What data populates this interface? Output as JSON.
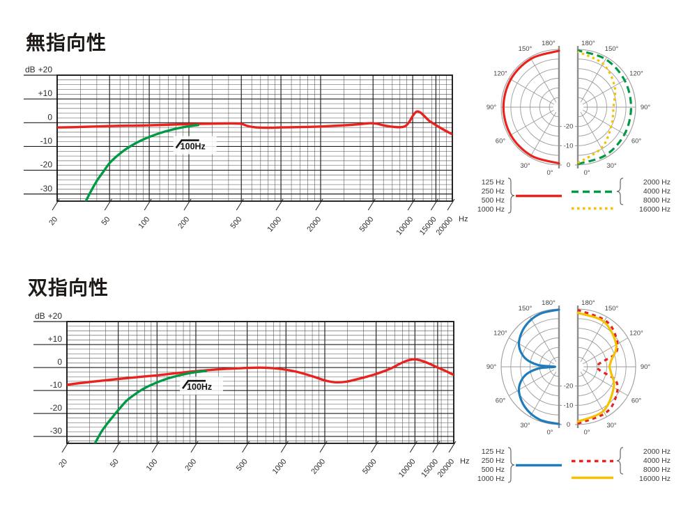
{
  "sections": [
    {
      "title": "無指向性"
    },
    {
      "title": "双指向性"
    }
  ],
  "chart_data": [
    {
      "id": "freq-omni",
      "type": "line",
      "title": "無指向性",
      "xlabel": "Hz",
      "ylabel": "dB",
      "x_scale": "log",
      "xlim": [
        20,
        20000
      ],
      "ylim": [
        -33,
        20
      ],
      "grid": true,
      "x_ticks": [
        {
          "v": 20,
          "label": "20"
        },
        {
          "v": 50,
          "label": "50"
        },
        {
          "v": 100,
          "label": "100"
        },
        {
          "v": 200,
          "label": "200"
        },
        {
          "v": 500,
          "label": "500"
        },
        {
          "v": 1000,
          "label": "1000"
        },
        {
          "v": 2000,
          "label": "2000"
        },
        {
          "v": 5000,
          "label": "5000"
        },
        {
          "v": 10000,
          "label": "10000"
        },
        {
          "v": 15000,
          "label": "15000"
        },
        {
          "v": 20000,
          "label": "20000"
        }
      ],
      "y_ticks": [
        {
          "v": 20,
          "label": "+20"
        },
        {
          "v": 10,
          "label": "+10"
        },
        {
          "v": 0,
          "label": "0"
        },
        {
          "v": -10,
          "label": "-10"
        },
        {
          "v": -20,
          "label": "-20"
        },
        {
          "v": -30,
          "label": "-30"
        }
      ],
      "annotation": {
        "text": "100Hz",
        "f": 160,
        "db": -7.4
      },
      "series": [
        {
          "name": "frequency-response",
          "color": "#e8231e",
          "style": "solid",
          "points": [
            [
              20,
              -2
            ],
            [
              30,
              -1.8
            ],
            [
              50,
              -1.4
            ],
            [
              80,
              -1.2
            ],
            [
              100,
              -1.1
            ],
            [
              150,
              -0.8
            ],
            [
              200,
              -0.6
            ],
            [
              300,
              -0.4
            ],
            [
              420,
              -0.3
            ],
            [
              500,
              -0.5
            ],
            [
              560,
              -1.4
            ],
            [
              650,
              -2
            ],
            [
              800,
              -2.1
            ],
            [
              1000,
              -2
            ],
            [
              1500,
              -1.8
            ],
            [
              2000,
              -1.6
            ],
            [
              3000,
              -1.1
            ],
            [
              4000,
              -0.6
            ],
            [
              4800,
              -0.2
            ],
            [
              5400,
              -0.5
            ],
            [
              6000,
              -1.1
            ],
            [
              7000,
              -1.7
            ],
            [
              8000,
              -1.9
            ],
            [
              8800,
              -1.4
            ],
            [
              9400,
              0.3
            ],
            [
              10000,
              2.8
            ],
            [
              10700,
              4.7
            ],
            [
              11500,
              4.2
            ],
            [
              12500,
              2.3
            ],
            [
              13500,
              0.6
            ],
            [
              15000,
              -1
            ],
            [
              17000,
              -2.8
            ],
            [
              20000,
              -4.9
            ]
          ]
        },
        {
          "name": "low-cut-100Hz",
          "color": "#009a44",
          "style": "solid",
          "points": [
            [
              33,
              -33
            ],
            [
              36,
              -29
            ],
            [
              40,
              -24.5
            ],
            [
              45,
              -20.5
            ],
            [
              50,
              -17
            ],
            [
              57,
              -14
            ],
            [
              65,
              -11.5
            ],
            [
              75,
              -9.3
            ],
            [
              85,
              -7.7
            ],
            [
              100,
              -6
            ],
            [
              120,
              -4.4
            ],
            [
              140,
              -3.3
            ],
            [
              170,
              -2.2
            ],
            [
              200,
              -1.5
            ],
            [
              235,
              -1
            ]
          ]
        }
      ]
    },
    {
      "id": "polar-omni",
      "type": "polar",
      "title": "無指向性 polar pattern",
      "rings_db": [
        0,
        -5,
        -10,
        -15,
        -20,
        -25
      ],
      "radial_axis_labels": [
        {
          "db": -20,
          "label": "-20"
        },
        {
          "db": -10,
          "label": "-10"
        },
        {
          "db": 0,
          "label": "0"
        }
      ],
      "angle_labels": [
        "0°",
        "30°",
        "60°",
        "90°",
        "120°",
        "150°",
        "180°"
      ],
      "halves": {
        "left": [
          {
            "name": "125-1000 Hz",
            "color": "#e8231e",
            "style": "solid",
            "points": [
              [
                0,
                -0.8
              ],
              [
                30,
                -1
              ],
              [
                60,
                -1.1
              ],
              [
                90,
                -1.2
              ],
              [
                120,
                -1.1
              ],
              [
                150,
                -1
              ],
              [
                180,
                -0.7
              ]
            ]
          }
        ],
        "right": [
          {
            "name": "2000-8000 Hz",
            "color": "#009a44",
            "style": "dashed",
            "points": [
              [
                0,
                -0.5
              ],
              [
                30,
                -1.2
              ],
              [
                60,
                -2
              ],
              [
                90,
                -2.4
              ],
              [
                120,
                -2
              ],
              [
                150,
                -1.2
              ],
              [
                180,
                -0.5
              ]
            ]
          },
          {
            "name": "16000 Hz",
            "color": "#f6c100",
            "style": "dotted",
            "points": [
              [
                0,
                -1
              ],
              [
                30,
                -5.5
              ],
              [
                60,
                -10
              ],
              [
                90,
                -11.5
              ],
              [
                120,
                -8
              ],
              [
                150,
                -4
              ],
              [
                180,
                -1.2
              ]
            ]
          }
        ]
      },
      "legend": {
        "low": {
          "labels": [
            "125 Hz",
            "250 Hz",
            "500 Hz",
            "1000 Hz"
          ],
          "color": "#e8231e",
          "style": "solid"
        },
        "high": [
          {
            "labels": [
              "2000 Hz",
              "4000 Hz",
              "8000 Hz"
            ],
            "color": "#009a44",
            "style": "dashed"
          },
          {
            "labels": [
              "16000 Hz"
            ],
            "color": "#f6c100",
            "style": "dotted"
          }
        ]
      }
    },
    {
      "id": "freq-bidirectional",
      "type": "line",
      "title": "双指向性",
      "xlabel": "Hz",
      "ylabel": "dB",
      "x_scale": "log",
      "xlim": [
        20,
        20000
      ],
      "ylim": [
        -33,
        20
      ],
      "grid": true,
      "x_ticks": [
        {
          "v": 20,
          "label": "20"
        },
        {
          "v": 50,
          "label": "50"
        },
        {
          "v": 100,
          "label": "100"
        },
        {
          "v": 200,
          "label": "200"
        },
        {
          "v": 500,
          "label": "500"
        },
        {
          "v": 1000,
          "label": "1000"
        },
        {
          "v": 2000,
          "label": "2000"
        },
        {
          "v": 5000,
          "label": "5000"
        },
        {
          "v": 10000,
          "label": "10000"
        },
        {
          "v": 15000,
          "label": "15000"
        },
        {
          "v": 20000,
          "label": "20000"
        }
      ],
      "y_ticks": [
        {
          "v": 20,
          "label": "+20"
        },
        {
          "v": 10,
          "label": "+10"
        },
        {
          "v": 0,
          "label": "0"
        },
        {
          "v": -10,
          "label": "-10"
        },
        {
          "v": -20,
          "label": "-20"
        },
        {
          "v": -30,
          "label": "-30"
        }
      ],
      "annotation": {
        "text": "100Hz",
        "f": 158,
        "db": -5.8
      },
      "series": [
        {
          "name": "frequency-response",
          "color": "#e8231e",
          "style": "solid",
          "points": [
            [
              20,
              -7.5
            ],
            [
              30,
              -6.3
            ],
            [
              50,
              -5
            ],
            [
              70,
              -4.2
            ],
            [
              100,
              -3.4
            ],
            [
              150,
              -2.3
            ],
            [
              200,
              -1.6
            ],
            [
              300,
              -0.8
            ],
            [
              400,
              -0.4
            ],
            [
              550,
              -0.1
            ],
            [
              700,
              -0.1
            ],
            [
              900,
              -0.6
            ],
            [
              1200,
              -1.8
            ],
            [
              1600,
              -3.8
            ],
            [
              2000,
              -5.6
            ],
            [
              2400,
              -6.4
            ],
            [
              2900,
              -6.2
            ],
            [
              3500,
              -5.2
            ],
            [
              4500,
              -3.6
            ],
            [
              5500,
              -2
            ],
            [
              6500,
              -0.4
            ],
            [
              7500,
              1.4
            ],
            [
              8500,
              2.8
            ],
            [
              9500,
              3.5
            ],
            [
              10500,
              3.4
            ],
            [
              12000,
              2.4
            ],
            [
              13500,
              1.2
            ],
            [
              15000,
              0
            ],
            [
              17000,
              -1.3
            ],
            [
              20000,
              -3.2
            ]
          ]
        },
        {
          "name": "low-cut-100Hz",
          "color": "#009a44",
          "style": "solid",
          "points": [
            [
              33,
              -33
            ],
            [
              37,
              -28
            ],
            [
              41,
              -24.5
            ],
            [
              46,
              -21
            ],
            [
              51,
              -18
            ],
            [
              58,
              -14.5
            ],
            [
              68,
              -11.5
            ],
            [
              80,
              -9
            ],
            [
              95,
              -7
            ],
            [
              115,
              -5.2
            ],
            [
              140,
              -3.8
            ],
            [
              170,
              -2.7
            ],
            [
              200,
              -2
            ],
            [
              240,
              -1.5
            ]
          ]
        }
      ]
    },
    {
      "id": "polar-bidirectional",
      "type": "polar",
      "title": "双指向性 polar pattern",
      "rings_db": [
        0,
        -5,
        -10,
        -15,
        -20,
        -25
      ],
      "radial_axis_labels": [
        {
          "db": -20,
          "label": "-20"
        },
        {
          "db": -10,
          "label": "-10"
        },
        {
          "db": 0,
          "label": "0"
        }
      ],
      "angle_labels": [
        "0°",
        "30°",
        "60°",
        "90°",
        "120°",
        "150°",
        "180°"
      ],
      "halves": {
        "left": [
          {
            "name": "125-1000 Hz",
            "color": "#1e7bbd",
            "style": "solid",
            "points": [
              [
                0,
                -0.3
              ],
              [
                20,
                -0.8
              ],
              [
                40,
                -2.6
              ],
              [
                60,
                -6
              ],
              [
                75,
                -11.5
              ],
              [
                85,
                -19
              ],
              [
                90,
                -28
              ],
              [
                95,
                -19
              ],
              [
                105,
                -11.5
              ],
              [
                120,
                -6
              ],
              [
                140,
                -2.6
              ],
              [
                160,
                -0.8
              ],
              [
                180,
                -0.3
              ]
            ]
          }
        ],
        "right": [
          {
            "name": "2000-8000 Hz",
            "color": "#e8231e",
            "style": "short-dash",
            "points": [
              [
                0,
                -0.5
              ],
              [
                30,
                -2
              ],
              [
                50,
                -4.5
              ],
              [
                70,
                -9
              ],
              [
                90,
                -20
              ],
              [
                110,
                -9
              ],
              [
                130,
                -4.5
              ],
              [
                150,
                -2
              ],
              [
                180,
                -0.5
              ]
            ]
          },
          {
            "name": "16000 Hz",
            "color": "#f6c100",
            "style": "solid",
            "points": [
              [
                0,
                -1.5
              ],
              [
                30,
                -3.5
              ],
              [
                60,
                -8.5
              ],
              [
                80,
                -12.5
              ],
              [
                90,
                -13.5
              ],
              [
                100,
                -12.5
              ],
              [
                120,
                -7
              ],
              [
                150,
                -3
              ],
              [
                180,
                -2
              ]
            ]
          }
        ]
      },
      "legend": {
        "low": {
          "labels": [
            "125 Hz",
            "250 Hz",
            "500 Hz",
            "1000 Hz"
          ],
          "color": "#1e7bbd",
          "style": "solid"
        },
        "high": [
          {
            "labels": [
              "2000 Hz",
              "4000 Hz",
              "8000 Hz"
            ],
            "color": "#e8231e",
            "style": "short-dash"
          },
          {
            "labels": [
              "16000 Hz"
            ],
            "color": "#f6c100",
            "style": "solid"
          }
        ]
      }
    }
  ]
}
